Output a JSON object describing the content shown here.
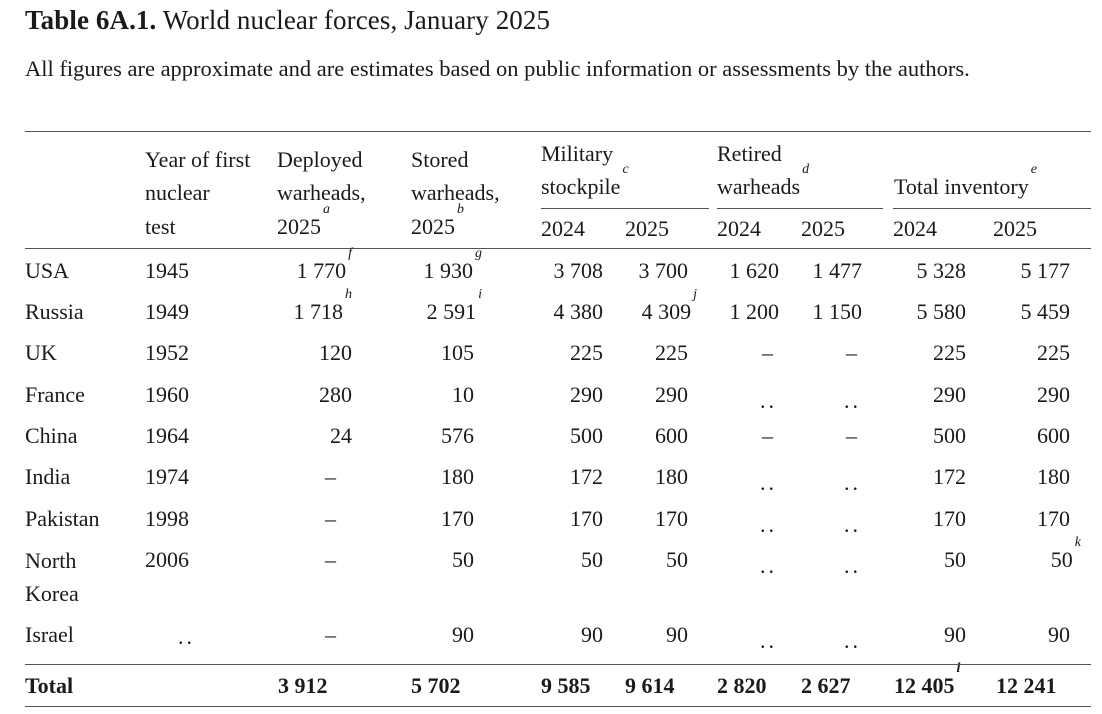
{
  "title": {
    "label": "Table 6A.1.",
    "text": "World nuclear forces, January 2025"
  },
  "subtitle": "All figures are approximate and are estimates based on public information or assessments by the authors.",
  "headers": {
    "year_first_test": [
      "Year of first",
      "nuclear",
      "test"
    ],
    "deployed": [
      "Deployed",
      "warheads,",
      "2025"
    ],
    "deployed_note": "a",
    "stored": [
      "Stored",
      "warheads,",
      "2025"
    ],
    "stored_note": "b",
    "military": [
      "Military",
      "stockpile"
    ],
    "military_note": "c",
    "retired": [
      "Retired",
      "warheads"
    ],
    "retired_note": "d",
    "total": "Total inventory",
    "total_note": "e",
    "y2024": "2024",
    "y2025": "2025"
  },
  "rows": [
    {
      "country": "USA",
      "year": "1945",
      "deployed": "1 770",
      "deployed_note": "f",
      "stored": "1 930",
      "stored_note": "g",
      "mil2024": "3 708",
      "mil2025": "3 700",
      "mil2025_note": "",
      "ret2024": "1 620",
      "ret2025": "1 477",
      "tot2024": "5 328",
      "tot2025": "5 177",
      "tot2025_note": ""
    },
    {
      "country": "Russia",
      "year": "1949",
      "deployed": "1 718",
      "deployed_note": "h",
      "stored": "2 591",
      "stored_note": "i",
      "mil2024": "4 380",
      "mil2025": "4 309",
      "mil2025_note": "j",
      "ret2024": "1 200",
      "ret2025": "1 150",
      "tot2024": "5 580",
      "tot2025": "5 459",
      "tot2025_note": ""
    },
    {
      "country": "UK",
      "year": "1952",
      "deployed": "120",
      "deployed_note": "",
      "stored": "105",
      "stored_note": "",
      "mil2024": "225",
      "mil2025": "225",
      "mil2025_note": "",
      "ret2024": "–",
      "ret2025": "–",
      "tot2024": "225",
      "tot2025": "225",
      "tot2025_note": ""
    },
    {
      "country": "France",
      "year": "1960",
      "deployed": "280",
      "deployed_note": "",
      "stored": "10",
      "stored_note": "",
      "mil2024": "290",
      "mil2025": "290",
      "mil2025_note": "",
      "ret2024": "..",
      "ret2025": "..",
      "tot2024": "290",
      "tot2025": "290",
      "tot2025_note": ""
    },
    {
      "country": "China",
      "year": "1964",
      "deployed": "24",
      "deployed_note": "",
      "stored": "576",
      "stored_note": "",
      "mil2024": "500",
      "mil2025": "600",
      "mil2025_note": "",
      "ret2024": "–",
      "ret2025": "–",
      "tot2024": "500",
      "tot2025": "600",
      "tot2025_note": ""
    },
    {
      "country": "India",
      "year": "1974",
      "deployed": "–",
      "deployed_note": "",
      "stored": "180",
      "stored_note": "",
      "mil2024": "172",
      "mil2025": "180",
      "mil2025_note": "",
      "ret2024": "..",
      "ret2025": "..",
      "tot2024": "172",
      "tot2025": "180",
      "tot2025_note": ""
    },
    {
      "country": "Pakistan",
      "year": "1998",
      "deployed": "–",
      "deployed_note": "",
      "stored": "170",
      "stored_note": "",
      "mil2024": "170",
      "mil2025": "170",
      "mil2025_note": "",
      "ret2024": "..",
      "ret2025": "..",
      "tot2024": "170",
      "tot2025": "170",
      "tot2025_note": ""
    },
    {
      "country": "North Korea",
      "year": "2006",
      "deployed": "–",
      "deployed_note": "",
      "stored": "50",
      "stored_note": "",
      "mil2024": "50",
      "mil2025": "50",
      "mil2025_note": "",
      "ret2024": "..",
      "ret2025": "..",
      "tot2024": "50",
      "tot2025": "50",
      "tot2025_note": "k"
    },
    {
      "country": "Israel",
      "year": "..",
      "deployed": "–",
      "deployed_note": "",
      "stored": "90",
      "stored_note": "",
      "mil2024": "90",
      "mil2025": "90",
      "mil2025_note": "",
      "ret2024": "..",
      "ret2025": "..",
      "tot2024": "90",
      "tot2025": "90",
      "tot2025_note": ""
    }
  ],
  "total_row": {
    "label": "Total",
    "deployed": "3 912",
    "stored": "5 702",
    "mil2024": "9 585",
    "mil2025": "9 614",
    "ret2024": "2 820",
    "ret2025": "2 627",
    "tot2024": "12 405",
    "tot2024_note": "l",
    "tot2025": "12 241"
  }
}
